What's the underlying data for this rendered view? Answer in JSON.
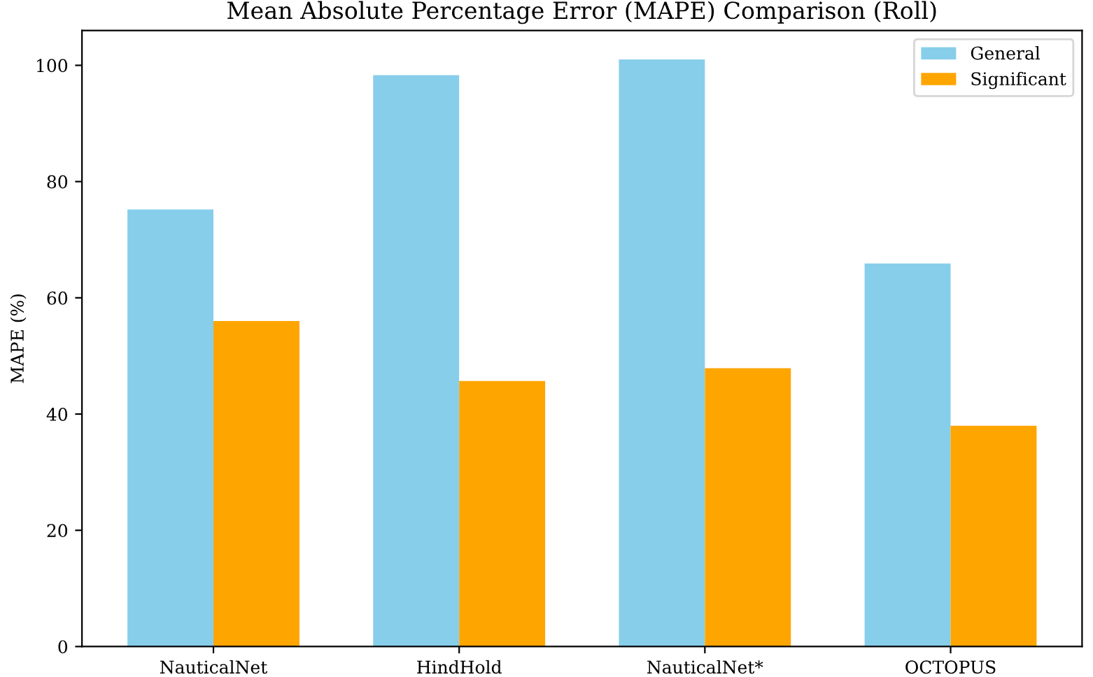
{
  "chart_data": {
    "type": "bar",
    "title": "Mean Absolute Percentage Error (MAPE) Comparison (Roll)",
    "ylabel": "MAPE (%)",
    "categories": [
      "NauticalNet",
      "HindHold",
      "NauticalNet*",
      "OCTOPUS"
    ],
    "series": [
      {
        "name": "General",
        "color": "#87ceeb",
        "values": [
          75.2,
          98.3,
          101.0,
          65.9
        ]
      },
      {
        "name": "Significant",
        "color": "#ffa500",
        "values": [
          56.0,
          45.7,
          47.9,
          38.0
        ]
      }
    ],
    "ylim": [
      0,
      106
    ],
    "yticks": [
      0,
      20,
      40,
      60,
      80,
      100
    ],
    "grid": false,
    "legend": "top right"
  }
}
